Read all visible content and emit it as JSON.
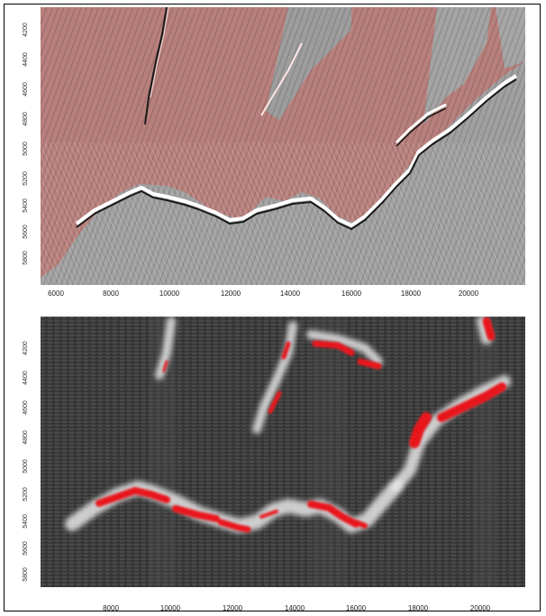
{
  "figure": {
    "panels": [
      {
        "id": "top",
        "description_type": "seismic-amplitude-overlay",
        "x_ticks": [
          "6000",
          "8000",
          "10000",
          "12000",
          "14000",
          "16000",
          "18000",
          "20000"
        ],
        "y_ticks": [
          "4200",
          "4400",
          "4600",
          "4800",
          "5000",
          "5200",
          "5400",
          "5600",
          "5800"
        ],
        "colors": {
          "upper_tint": "#b07b78",
          "lower_base": "#9a9a9a",
          "reflector": "#ffffff"
        }
      },
      {
        "id": "bottom",
        "description_type": "probability-map",
        "x_ticks": [
          "8000",
          "10000",
          "12000",
          "14000",
          "16000",
          "18000",
          "20000"
        ],
        "y_ticks": [
          "4200",
          "4400",
          "4600",
          "4800",
          "5000",
          "5200",
          "5400",
          "5600",
          "5800"
        ],
        "colors": {
          "background": "#3a3a3a",
          "highlight": "#e8131b",
          "halo": "#e6e6e6"
        }
      }
    ]
  }
}
